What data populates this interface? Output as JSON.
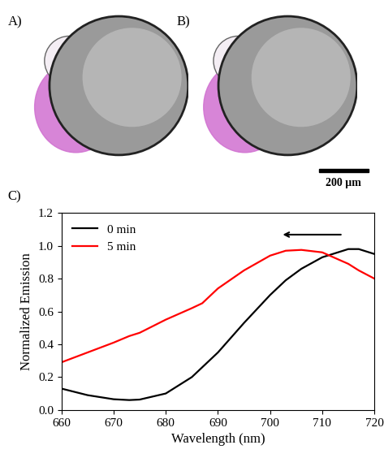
{
  "figure": {
    "panel_labels": [
      "A)",
      "B)",
      "C)"
    ],
    "scale_bar": "200 µm"
  },
  "chart_data": {
    "type": "line",
    "x_label": "Wavelength (nm)",
    "y_label": "Normalized Emission",
    "x": [
      660,
      665,
      670,
      673,
      675,
      680,
      685,
      687,
      690,
      695,
      700,
      703,
      706,
      710,
      715,
      717,
      720
    ],
    "series": [
      {
        "name": "0 min",
        "color": "#000000",
        "values": [
          0.13,
          0.09,
          0.065,
          0.06,
          0.063,
          0.1,
          0.2,
          0.26,
          0.35,
          0.53,
          0.7,
          0.79,
          0.86,
          0.93,
          0.98,
          0.98,
          0.95
        ]
      },
      {
        "name": "5 min",
        "color": "#ff0000",
        "values": [
          0.29,
          0.35,
          0.41,
          0.45,
          0.47,
          0.55,
          0.62,
          0.65,
          0.74,
          0.85,
          0.94,
          0.97,
          0.975,
          0.96,
          0.89,
          0.85,
          0.8
        ]
      }
    ],
    "xlim": [
      660,
      720
    ],
    "xticks": [
      660,
      670,
      680,
      690,
      700,
      710,
      720
    ],
    "ylim": [
      0,
      1.2
    ],
    "yticks": [
      {
        "value": 0,
        "label": "0.0"
      },
      {
        "value": 0.2,
        "label": "0.2"
      },
      {
        "value": 0.4,
        "label": "0.4"
      },
      {
        "value": 0.6,
        "label": "0.6"
      },
      {
        "value": 0.8,
        "label": "0.8"
      },
      {
        "value": 1.0,
        "label": "1.0"
      },
      {
        "value": 1.2,
        "label": "1.2"
      }
    ],
    "legend": "upper left",
    "grid": false
  }
}
